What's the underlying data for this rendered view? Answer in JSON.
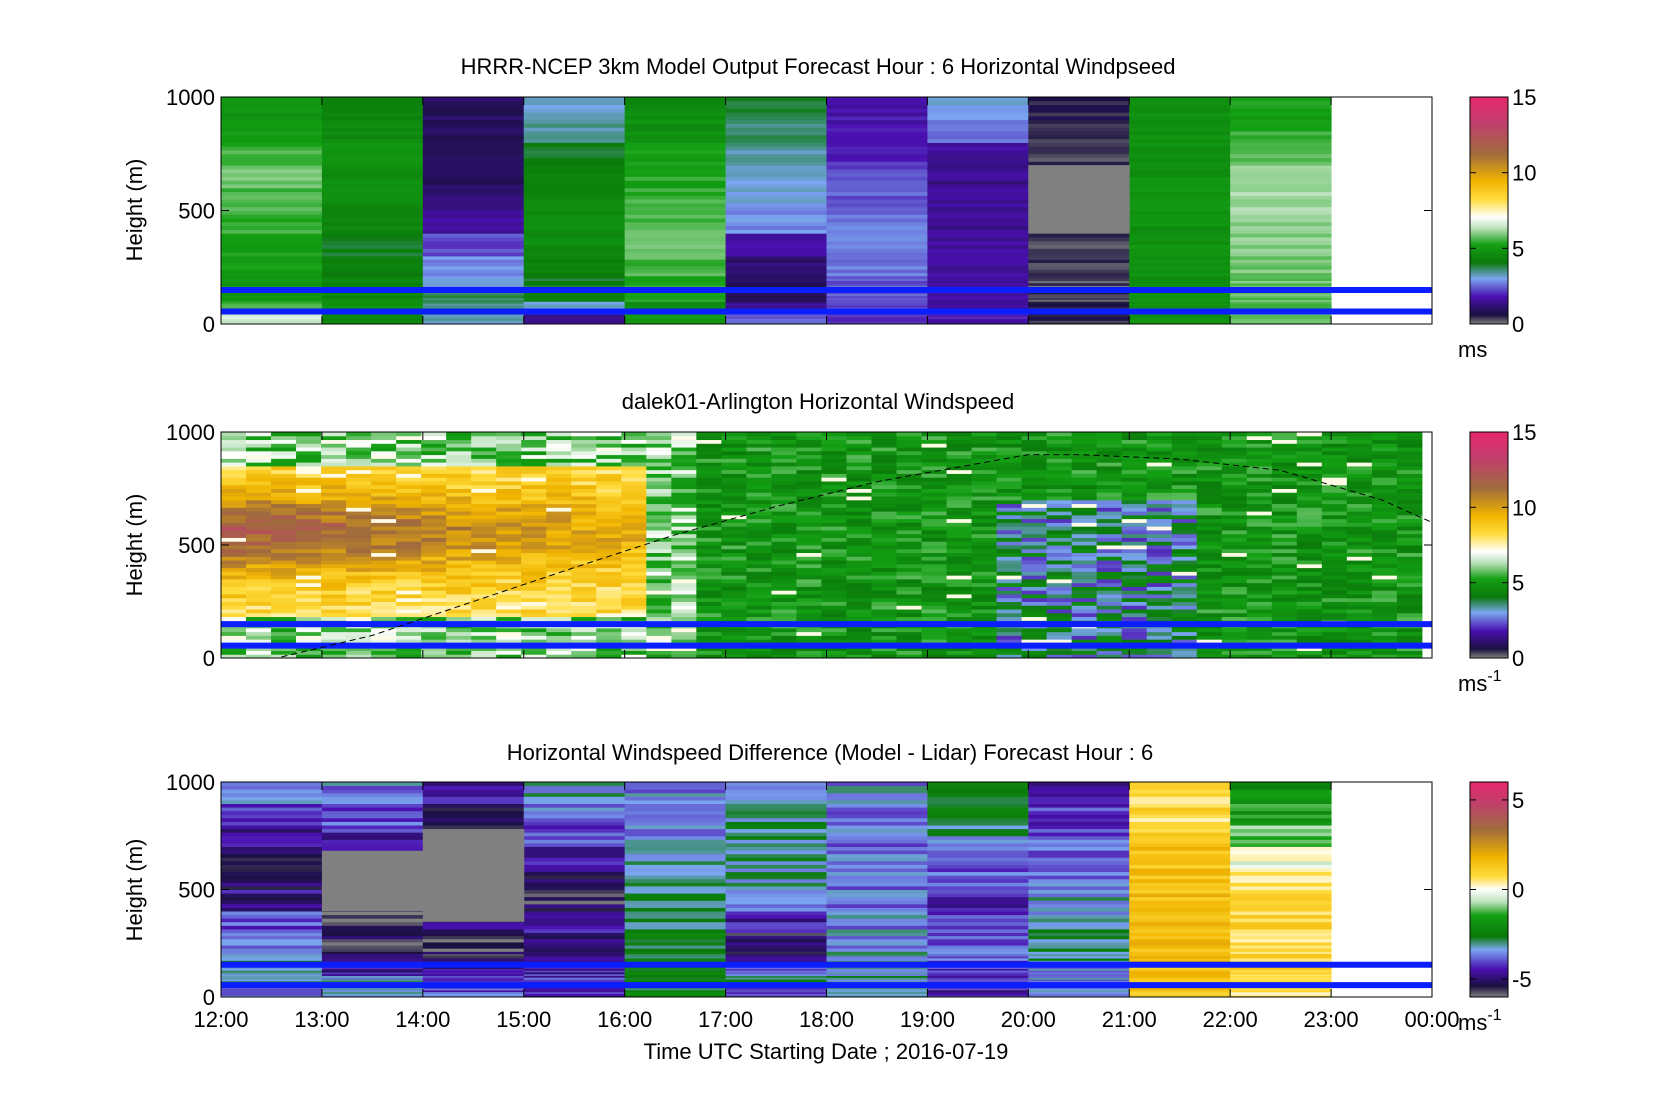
{
  "figure": {
    "xlabel": "Time UTC  Starting Date ; 2016-07-19",
    "x_ticks": [
      "12:00",
      "13:00",
      "14:00",
      "15:00",
      "16:00",
      "17:00",
      "18:00",
      "19:00",
      "20:00",
      "21:00",
      "22:00",
      "23:00",
      "00:00"
    ]
  },
  "chart_data": [
    {
      "type": "heatmap",
      "title": "HRRR-NCEP 3km Model Output   Forecast Hour : 6 Horizontal Windpseed",
      "ylabel": "Height (m)",
      "ylim": [
        0,
        1000
      ],
      "y_ticks": [
        "0",
        "500",
        "1000"
      ],
      "colorbar": {
        "range": [
          0,
          15
        ],
        "ticks": [
          "0",
          "5",
          "10",
          "15"
        ],
        "unit": "ms",
        "unit_sup": ""
      },
      "hlines_m": [
        150,
        55
      ],
      "x": [
        "12:00",
        "13:00",
        "14:00",
        "15:00",
        "16:00",
        "17:00",
        "18:00",
        "19:00",
        "20:00",
        "21:00",
        "22:00",
        "23:00"
      ],
      "z_heights_m": [
        25,
        75,
        125,
        175,
        250,
        350,
        450,
        550,
        650,
        750,
        850,
        950
      ],
      "z_values": [
        [
          6.5,
          4.5,
          3.2,
          1.5,
          5.0,
          2.5,
          2.0,
          1.8,
          0.5,
          4.8,
          5.8,
          null
        ],
        [
          5.5,
          4.8,
          3.5,
          3.0,
          4.6,
          1.5,
          2.2,
          1.6,
          0.4,
          4.8,
          5.6,
          null
        ],
        [
          5.0,
          4.5,
          3.8,
          4.2,
          5.2,
          0.8,
          2.4,
          1.6,
          0.3,
          4.8,
          5.7,
          null
        ],
        [
          5.0,
          4.3,
          3.0,
          4.0,
          5.4,
          0.9,
          2.4,
          1.7,
          0.3,
          4.8,
          5.8,
          null
        ],
        [
          5.1,
          4.2,
          2.8,
          4.2,
          5.6,
          1.2,
          2.6,
          1.6,
          0.3,
          4.8,
          5.9,
          null
        ],
        [
          5.2,
          4.0,
          2.2,
          4.6,
          5.7,
          1.8,
          2.7,
          1.6,
          0.3,
          4.8,
          6.0,
          null
        ],
        [
          5.4,
          4.4,
          1.6,
          4.6,
          5.6,
          2.8,
          2.6,
          1.5,
          0.0,
          4.8,
          6.1,
          null
        ],
        [
          5.6,
          4.6,
          1.2,
          4.5,
          5.5,
          3.0,
          2.4,
          1.5,
          0.0,
          4.8,
          6.2,
          null
        ],
        [
          5.9,
          4.7,
          1.0,
          4.4,
          5.3,
          3.2,
          2.3,
          1.4,
          0.0,
          4.8,
          6.0,
          null
        ],
        [
          5.5,
          4.8,
          0.9,
          4.0,
          5.1,
          3.4,
          2.0,
          1.6,
          0.4,
          4.8,
          5.8,
          null
        ],
        [
          5.2,
          4.6,
          0.8,
          3.4,
          4.8,
          3.6,
          1.8,
          2.6,
          0.5,
          4.8,
          5.5,
          null
        ],
        [
          4.9,
          4.4,
          0.9,
          3.2,
          4.6,
          3.8,
          1.8,
          3.0,
          0.6,
          4.8,
          5.2,
          null
        ]
      ],
      "special_cells": [
        {
          "x_index": 8,
          "y_from_m": 400,
          "y_to_m": 700,
          "color": "#808080"
        }
      ]
    },
    {
      "type": "heatmap",
      "title": "dalek01-Arlington  Horizontal Windspeed",
      "ylabel": "Height (m)",
      "ylim": [
        0,
        1000
      ],
      "y_ticks": [
        "0",
        "500",
        "1000"
      ],
      "colorbar": {
        "range": [
          0,
          15
        ],
        "ticks": [
          "0",
          "5",
          "10",
          "15"
        ],
        "unit": "ms",
        "unit_sup": "-1"
      },
      "hlines_m": [
        150,
        55
      ],
      "overlay_curve": {
        "style": "dashed",
        "x_hours": [
          12.6,
          13.5,
          14.5,
          15.5,
          16.5,
          17.5,
          18.5,
          19.5,
          20.0,
          20.5,
          21.5,
          22.5,
          23.5,
          24.0
        ],
        "y_m": [
          5,
          100,
          250,
          400,
          545,
          670,
          780,
          860,
          900,
          900,
          880,
          830,
          700,
          600
        ]
      },
      "time_range_hours": [
        12,
        23.9
      ],
      "height_range_m": [
        0,
        1000
      ],
      "value_range": [
        0.5,
        13.5
      ]
    },
    {
      "type": "heatmap",
      "title": "Horizontal Windspeed Difference (Model - Lidar) Forecast Hour : 6",
      "ylabel": "Height (m)",
      "ylim": [
        0,
        1000
      ],
      "y_ticks": [
        "0",
        "500",
        "1000"
      ],
      "colorbar": {
        "range": [
          -6,
          6
        ],
        "ticks": [
          "-5",
          "0",
          "5"
        ],
        "unit": "ms",
        "unit_sup": "-1"
      },
      "hlines_m": [
        150,
        55
      ],
      "x": [
        "12:00",
        "13:00",
        "14:00",
        "15:00",
        "16:00",
        "17:00",
        "18:00",
        "19:00",
        "20:00",
        "21:00",
        "22:00",
        "23:00"
      ],
      "z_heights_m": [
        25,
        75,
        125,
        175,
        250,
        350,
        450,
        550,
        650,
        750,
        850,
        950
      ],
      "z_values": [
        [
          -3.5,
          -3.0,
          -4.0,
          -4.5,
          -2.5,
          -4.0,
          -3.0,
          -4.5,
          -3.5,
          1.5,
          0.5,
          null
        ],
        [
          -3.0,
          -3.2,
          -4.2,
          -4.2,
          -2.3,
          -3.0,
          -3.0,
          -4.5,
          -3.6,
          1.2,
          0.8,
          null
        ],
        [
          -2.8,
          -4.6,
          -4.8,
          -4.5,
          -2.6,
          -4.0,
          -3.2,
          -4.2,
          -3.4,
          1.5,
          1.0,
          null
        ],
        [
          -3.2,
          -5.0,
          -5.2,
          -4.6,
          -2.4,
          -5.0,
          -3.4,
          -4.0,
          -3.2,
          1.5,
          0.8,
          null
        ],
        [
          -3.5,
          -5.4,
          -5.6,
          -4.8,
          -2.6,
          -5.2,
          -3.4,
          -4.0,
          -3.0,
          1.5,
          0.6,
          null
        ],
        [
          -4.0,
          -5.6,
          -5.0,
          -4.4,
          -2.8,
          -4.6,
          -3.5,
          -4.2,
          -3.2,
          1.6,
          0.9,
          null
        ],
        [
          -4.8,
          -5.2,
          -4.6,
          -5.4,
          -2.9,
          -3.4,
          -3.6,
          -4.3,
          -3.4,
          1.6,
          0.9,
          null
        ],
        [
          -5.0,
          -5.0,
          -4.8,
          -5.0,
          -3.0,
          -3.2,
          -3.6,
          -4.0,
          -3.6,
          1.5,
          0.4,
          null
        ],
        [
          -5.2,
          -4.6,
          -5.2,
          -4.6,
          -3.2,
          -3.0,
          -3.7,
          -3.6,
          -3.8,
          1.3,
          0.0,
          null
        ],
        [
          -4.8,
          -4.4,
          -5.6,
          -4.0,
          -3.4,
          -3.0,
          -3.7,
          -3.2,
          -4.0,
          1.0,
          -1.0,
          null
        ],
        [
          -4.0,
          -4.0,
          -5.0,
          -3.6,
          -3.5,
          -3.2,
          -3.6,
          -2.8,
          -4.2,
          0.8,
          -1.6,
          null
        ],
        [
          -3.4,
          -3.6,
          -4.4,
          -3.2,
          -3.6,
          -3.4,
          -3.5,
          -2.4,
          -4.4,
          0.6,
          -2.0,
          null
        ]
      ],
      "special_cells": [
        {
          "x_index": 1,
          "y_from_m": 400,
          "y_to_m": 680,
          "color": "#808080"
        },
        {
          "x_index": 2,
          "y_from_m": 350,
          "y_to_m": 780,
          "color": "#808080"
        }
      ]
    }
  ],
  "colors": {
    "hline": "#0a1eff",
    "axis": "#000000",
    "background": "#ffffff",
    "missing": "#808080"
  }
}
